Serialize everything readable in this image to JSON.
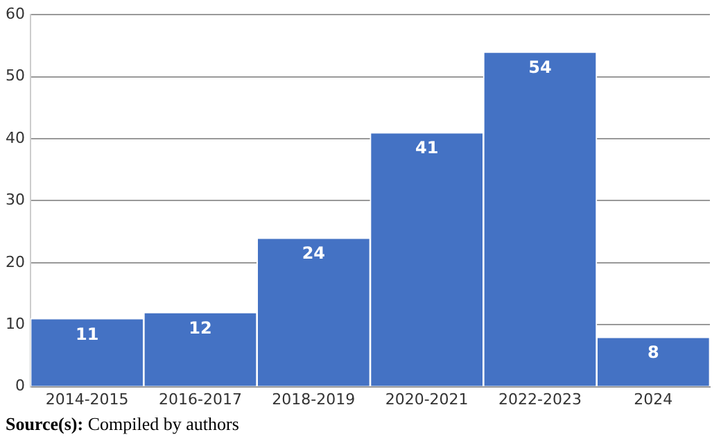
{
  "chart_data": {
    "type": "bar",
    "categories": [
      "2014-2015",
      "2016-2017",
      "2018-2019",
      "2020-2021",
      "2022-2023",
      "2024"
    ],
    "values": [
      11,
      12,
      24,
      41,
      54,
      8
    ],
    "color": "#4472c4",
    "ylim": [
      0,
      60
    ],
    "yticks": [
      0,
      10,
      20,
      30,
      40,
      50,
      60
    ],
    "grid": "y",
    "data_labels": true,
    "annotations": [
      "Source(s): Compiled by authors"
    ]
  }
}
